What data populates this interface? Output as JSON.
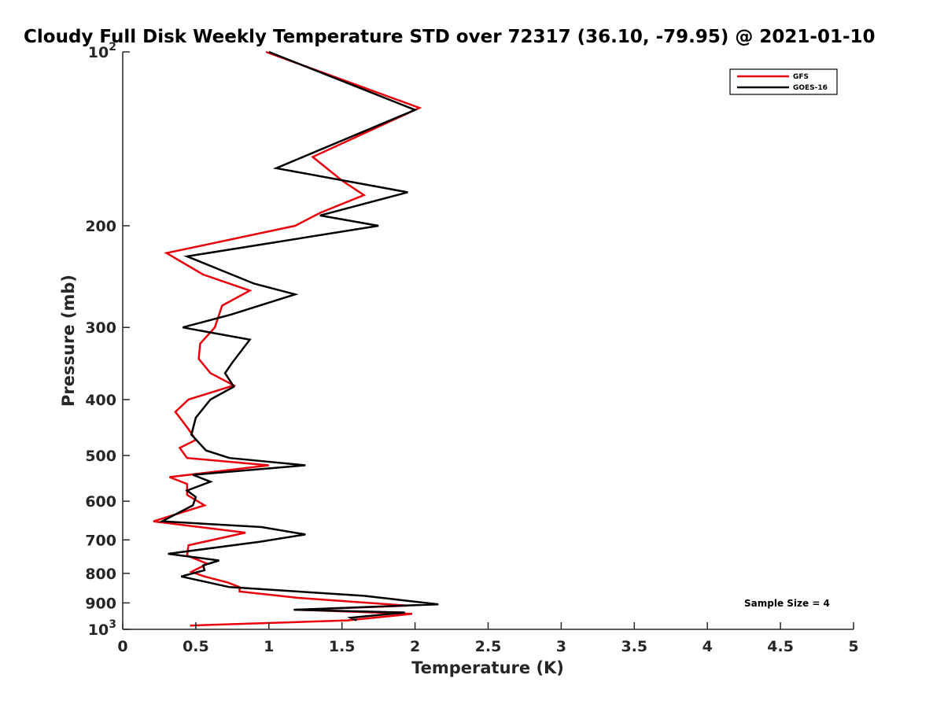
{
  "chart_data": {
    "type": "line",
    "title": "Cloudy Full Disk Weekly Temperature STD over 72317 (36.10, -79.95) @ 2021-01-10",
    "xlabel": "Temperature (K)",
    "ylabel": "Pressure (mb)",
    "xlim": [
      0,
      5
    ],
    "ylim": [
      100,
      1000
    ],
    "y_scale": "log",
    "y_reversed": true,
    "grid": false,
    "legend_position": "top-right",
    "x_ticks": [
      {
        "value": 0,
        "label": "0"
      },
      {
        "value": 0.5,
        "label": "0.5"
      },
      {
        "value": 1,
        "label": "1"
      },
      {
        "value": 1.5,
        "label": "1.5"
      },
      {
        "value": 2,
        "label": "2"
      },
      {
        "value": 2.5,
        "label": "2.5"
      },
      {
        "value": 3,
        "label": "3"
      },
      {
        "value": 3.5,
        "label": "3.5"
      },
      {
        "value": 4,
        "label": "4"
      },
      {
        "value": 4.5,
        "label": "4.5"
      },
      {
        "value": 5,
        "label": "5"
      }
    ],
    "y_ticks": [
      {
        "value": 100,
        "label": "10",
        "sup": "2"
      },
      {
        "value": 200,
        "label": "200",
        "sup": ""
      },
      {
        "value": 300,
        "label": "300",
        "sup": ""
      },
      {
        "value": 400,
        "label": "400",
        "sup": ""
      },
      {
        "value": 500,
        "label": "500",
        "sup": ""
      },
      {
        "value": 600,
        "label": "600",
        "sup": ""
      },
      {
        "value": 700,
        "label": "700",
        "sup": ""
      },
      {
        "value": 800,
        "label": "800",
        "sup": ""
      },
      {
        "value": 900,
        "label": "900",
        "sup": ""
      },
      {
        "value": 1000,
        "label": "10",
        "sup": "3"
      }
    ],
    "series": [
      {
        "name": "GFS",
        "color": "#e8000b",
        "points": [
          [
            0.98,
            100
          ],
          [
            2.03,
            125
          ],
          [
            1.3,
            152
          ],
          [
            1.5,
            167
          ],
          [
            1.65,
            177
          ],
          [
            1.35,
            190
          ],
          [
            1.18,
            200
          ],
          [
            0.3,
            223
          ],
          [
            0.55,
            243
          ],
          [
            0.87,
            259
          ],
          [
            0.68,
            275
          ],
          [
            0.63,
            300
          ],
          [
            0.53,
            320
          ],
          [
            0.52,
            340
          ],
          [
            0.6,
            360
          ],
          [
            0.76,
            378
          ],
          [
            0.45,
            400
          ],
          [
            0.36,
            420
          ],
          [
            0.45,
            450
          ],
          [
            0.5,
            470
          ],
          [
            0.39,
            485
          ],
          [
            0.44,
            505
          ],
          [
            1.0,
            520
          ],
          [
            0.32,
            545
          ],
          [
            0.44,
            560
          ],
          [
            0.44,
            585
          ],
          [
            0.56,
            610
          ],
          [
            0.21,
            650
          ],
          [
            0.84,
            680
          ],
          [
            0.45,
            715
          ],
          [
            0.44,
            745
          ],
          [
            0.58,
            770
          ],
          [
            0.47,
            795
          ],
          [
            0.56,
            810
          ],
          [
            0.72,
            830
          ],
          [
            0.8,
            845
          ],
          [
            0.8,
            860
          ],
          [
            1.2,
            882
          ],
          [
            1.95,
            910
          ],
          [
            1.19,
            925
          ],
          [
            1.98,
            940
          ],
          [
            1.54,
            965
          ],
          [
            0.46,
            985
          ]
        ]
      },
      {
        "name": "GOES-16",
        "color": "#000000",
        "points": [
          [
            1.0,
            100
          ],
          [
            2.0,
            126
          ],
          [
            1.05,
            159
          ],
          [
            1.95,
            175
          ],
          [
            1.35,
            192
          ],
          [
            1.75,
            200
          ],
          [
            0.44,
            226
          ],
          [
            0.9,
            252
          ],
          [
            1.18,
            263
          ],
          [
            0.74,
            285
          ],
          [
            0.41,
            300
          ],
          [
            0.87,
            315
          ],
          [
            0.75,
            345
          ],
          [
            0.7,
            360
          ],
          [
            0.76,
            380
          ],
          [
            0.6,
            400
          ],
          [
            0.5,
            430
          ],
          [
            0.47,
            460
          ],
          [
            0.57,
            490
          ],
          [
            0.73,
            505
          ],
          [
            1.25,
            520
          ],
          [
            0.48,
            540
          ],
          [
            0.6,
            555
          ],
          [
            0.44,
            575
          ],
          [
            0.5,
            590
          ],
          [
            0.48,
            610
          ],
          [
            0.27,
            650
          ],
          [
            0.95,
            665
          ],
          [
            1.25,
            685
          ],
          [
            0.94,
            705
          ],
          [
            0.31,
            740
          ],
          [
            0.66,
            760
          ],
          [
            0.55,
            775
          ],
          [
            0.56,
            790
          ],
          [
            0.4,
            810
          ],
          [
            0.73,
            845
          ],
          [
            1.65,
            875
          ],
          [
            2.16,
            905
          ],
          [
            1.17,
            925
          ],
          [
            1.93,
            935
          ],
          [
            1.56,
            955
          ],
          [
            1.6,
            965
          ]
        ]
      }
    ],
    "annotation": "Sample Size = 4"
  }
}
